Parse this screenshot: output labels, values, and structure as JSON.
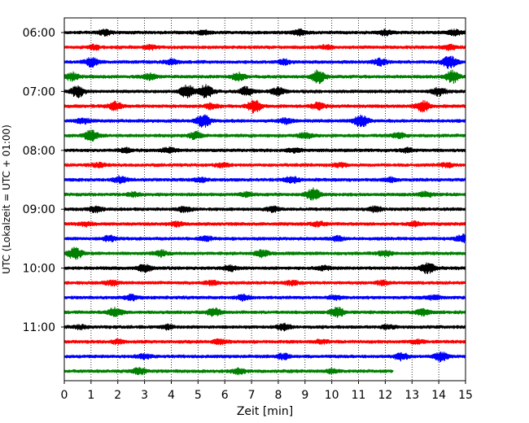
{
  "chart_data": {
    "type": "line",
    "subtype": "helicorder",
    "xlabel": "Zeit  [min]",
    "ylabel": "UTC (Lokalzeit = UTC + 01:00)",
    "xlim": [
      0,
      15
    ],
    "x_ticks": [
      "0",
      "1",
      "2",
      "3",
      "4",
      "5",
      "6",
      "7",
      "8",
      "9",
      "10",
      "11",
      "12",
      "13",
      "14",
      "15"
    ],
    "y_ticks": [
      "06:00",
      "07:00",
      "08:00",
      "09:00",
      "10:00",
      "11:00"
    ],
    "grid": "vertical dotted",
    "trace_colors": [
      "#000000",
      "#ff0000",
      "#0000ff",
      "#008000"
    ],
    "traces": [
      {
        "start": "06:00",
        "color": "#000000",
        "end_min": 15,
        "bursts": [
          [
            1.5,
            0.4
          ],
          [
            5.2,
            0.3
          ],
          [
            8.8,
            0.5
          ],
          [
            12.0,
            0.4
          ],
          [
            14.6,
            0.4
          ]
        ]
      },
      {
        "start": "06:15",
        "color": "#ff0000",
        "end_min": 15,
        "bursts": [
          [
            1.1,
            0.3
          ],
          [
            3.2,
            0.3
          ],
          [
            9.8,
            0.3
          ],
          [
            14.4,
            0.4
          ]
        ]
      },
      {
        "start": "06:30",
        "color": "#0000ff",
        "end_min": 15,
        "bursts": [
          [
            1.0,
            0.7
          ],
          [
            4.0,
            0.4
          ],
          [
            8.2,
            0.4
          ],
          [
            11.8,
            0.5
          ],
          [
            14.4,
            1.0
          ]
        ]
      },
      {
        "start": "06:45",
        "color": "#008000",
        "end_min": 15,
        "bursts": [
          [
            0.3,
            0.6
          ],
          [
            3.2,
            0.5
          ],
          [
            6.5,
            0.6
          ],
          [
            9.5,
            1.0
          ],
          [
            14.5,
            1.0
          ]
        ]
      },
      {
        "start": "07:00",
        "color": "#000000",
        "end_min": 15,
        "bursts": [
          [
            0.5,
            0.9
          ],
          [
            4.6,
            1.0
          ],
          [
            5.3,
            1.0
          ],
          [
            6.8,
            0.7
          ],
          [
            8.0,
            0.6
          ],
          [
            14.0,
            0.6
          ]
        ]
      },
      {
        "start": "07:15",
        "color": "#ff0000",
        "end_min": 15,
        "bursts": [
          [
            1.9,
            0.7
          ],
          [
            5.5,
            0.4
          ],
          [
            7.1,
            1.0
          ],
          [
            9.5,
            0.5
          ],
          [
            13.4,
            0.9
          ]
        ]
      },
      {
        "start": "07:30",
        "color": "#0000ff",
        "end_min": 15,
        "bursts": [
          [
            0.7,
            0.4
          ],
          [
            5.2,
            1.0
          ],
          [
            8.3,
            0.4
          ],
          [
            11.1,
            1.0
          ]
        ]
      },
      {
        "start": "07:45",
        "color": "#008000",
        "end_min": 15,
        "bursts": [
          [
            1.0,
            0.8
          ],
          [
            4.9,
            0.5
          ],
          [
            9.0,
            0.4
          ],
          [
            12.5,
            0.4
          ]
        ]
      },
      {
        "start": "08:00",
        "color": "#000000",
        "end_min": 15,
        "bursts": [
          [
            2.3,
            0.3
          ],
          [
            3.9,
            0.4
          ],
          [
            8.6,
            0.3
          ],
          [
            12.8,
            0.3
          ]
        ]
      },
      {
        "start": "08:15",
        "color": "#ff0000",
        "end_min": 15,
        "bursts": [
          [
            1.3,
            0.3
          ],
          [
            5.9,
            0.3
          ],
          [
            10.3,
            0.3
          ],
          [
            14.3,
            0.3
          ]
        ]
      },
      {
        "start": "08:30",
        "color": "#0000ff",
        "end_min": 15,
        "bursts": [
          [
            2.1,
            0.5
          ],
          [
            5.1,
            0.3
          ],
          [
            8.5,
            0.5
          ],
          [
            12.2,
            0.3
          ]
        ]
      },
      {
        "start": "08:45",
        "color": "#008000",
        "end_min": 15,
        "bursts": [
          [
            2.6,
            0.3
          ],
          [
            6.8,
            0.3
          ],
          [
            9.3,
            1.0
          ],
          [
            13.5,
            0.4
          ]
        ]
      },
      {
        "start": "09:00",
        "color": "#000000",
        "end_min": 15,
        "bursts": [
          [
            1.2,
            0.5
          ],
          [
            4.5,
            0.4
          ],
          [
            7.8,
            0.4
          ],
          [
            11.6,
            0.4
          ]
        ]
      },
      {
        "start": "09:15",
        "color": "#ff0000",
        "end_min": 15,
        "bursts": [
          [
            0.8,
            0.3
          ],
          [
            4.2,
            0.3
          ],
          [
            9.5,
            0.3
          ],
          [
            13.1,
            0.3
          ]
        ]
      },
      {
        "start": "09:30",
        "color": "#0000ff",
        "end_min": 15,
        "bursts": [
          [
            1.7,
            0.4
          ],
          [
            5.3,
            0.3
          ],
          [
            10.2,
            0.4
          ],
          [
            14.9,
            0.6
          ]
        ]
      },
      {
        "start": "09:45",
        "color": "#008000",
        "end_min": 15,
        "bursts": [
          [
            0.4,
            1.0
          ],
          [
            3.6,
            0.5
          ],
          [
            7.4,
            0.5
          ],
          [
            12.0,
            0.4
          ]
        ]
      },
      {
        "start": "10:00",
        "color": "#000000",
        "end_min": 15,
        "bursts": [
          [
            3.0,
            0.6
          ],
          [
            6.2,
            0.4
          ],
          [
            9.7,
            0.3
          ],
          [
            13.6,
            0.8
          ]
        ]
      },
      {
        "start": "10:15",
        "color": "#ff0000",
        "end_min": 15,
        "bursts": [
          [
            1.8,
            0.4
          ],
          [
            5.5,
            0.3
          ],
          [
            8.5,
            0.3
          ],
          [
            11.9,
            0.3
          ]
        ]
      },
      {
        "start": "10:30",
        "color": "#0000ff",
        "end_min": 15,
        "bursts": [
          [
            2.5,
            0.4
          ],
          [
            6.7,
            0.4
          ],
          [
            10.1,
            0.3
          ],
          [
            13.8,
            0.3
          ]
        ]
      },
      {
        "start": "10:45",
        "color": "#008000",
        "end_min": 15,
        "bursts": [
          [
            1.9,
            0.7
          ],
          [
            5.6,
            0.6
          ],
          [
            10.2,
            0.8
          ],
          [
            13.4,
            0.5
          ]
        ]
      },
      {
        "start": "11:00",
        "color": "#000000",
        "end_min": 15,
        "bursts": [
          [
            0.6,
            0.3
          ],
          [
            3.9,
            0.3
          ],
          [
            8.2,
            0.5
          ],
          [
            12.1,
            0.3
          ]
        ]
      },
      {
        "start": "11:15",
        "color": "#ff0000",
        "end_min": 15,
        "bursts": [
          [
            2.0,
            0.3
          ],
          [
            5.8,
            0.4
          ],
          [
            9.6,
            0.3
          ],
          [
            13.2,
            0.3
          ]
        ]
      },
      {
        "start": "11:30",
        "color": "#0000ff",
        "end_min": 15,
        "bursts": [
          [
            3.0,
            0.3
          ],
          [
            8.2,
            0.4
          ],
          [
            12.6,
            0.6
          ],
          [
            14.1,
            0.7
          ]
        ]
      },
      {
        "start": "11:45",
        "color": "#008000",
        "end_min": 12.3,
        "bursts": [
          [
            2.8,
            0.5
          ],
          [
            6.5,
            0.4
          ],
          [
            10.0,
            0.3
          ]
        ]
      }
    ]
  }
}
